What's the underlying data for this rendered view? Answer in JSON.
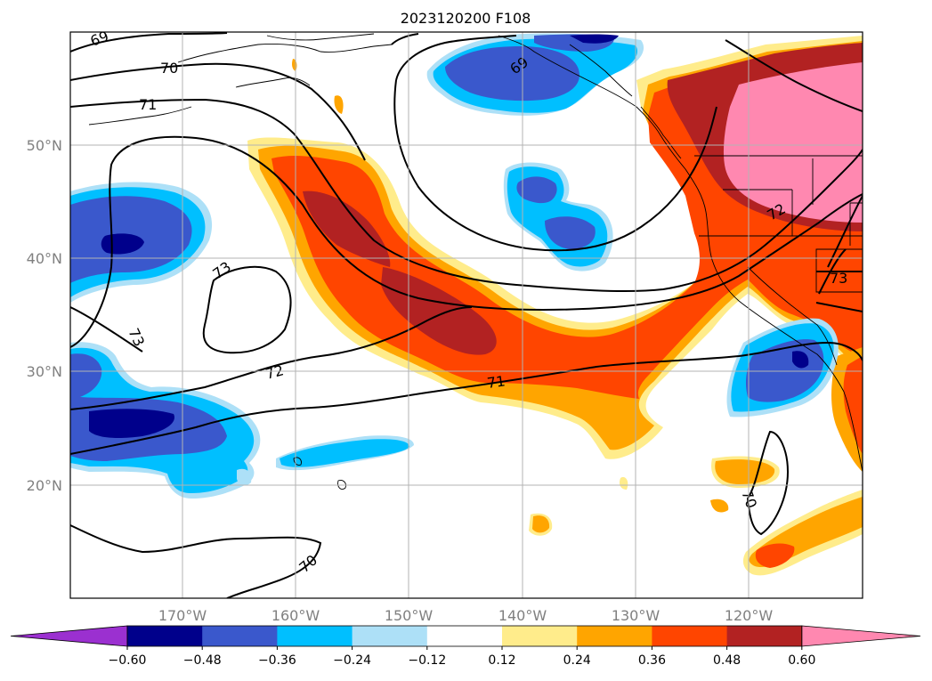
{
  "title": "2023120200 F108",
  "lat_labels": [
    "50°N",
    "40°N",
    "30°N",
    "20°N"
  ],
  "lon_labels": [
    "170°W",
    "160°W",
    "150°W",
    "140°W",
    "130°W",
    "120°W"
  ],
  "contour_labels": [
    "69",
    "69",
    "70",
    "70",
    "70",
    "71",
    "71",
    "72",
    "72",
    "73",
    "73",
    "73"
  ],
  "colorbar": {
    "ticks": [
      "−0.60",
      "−0.48",
      "−0.36",
      "−0.24",
      "−0.12",
      "0.12",
      "0.24",
      "0.36",
      "0.48",
      "0.60"
    ],
    "colors": [
      "#9b30d0",
      "#00008b",
      "#3a58cc",
      "#00bfff",
      "#ade0f7",
      "#ffffff",
      "#ffec8b",
      "#ffa500",
      "#ff4500",
      "#b22222",
      "#ff88b0"
    ]
  },
  "fill_colors": {
    "neg_light": "#ade0f7",
    "neg_mid": "#00bfff",
    "neg_strong": "#3a58cc",
    "neg_max": "#00008b",
    "pos_light": "#ffec8b",
    "pos_mid": "#ffa500",
    "pos_strong": "#ff4500",
    "pos_high": "#b22222",
    "pos_max": "#ff88b0"
  },
  "grid_color": "#b3b3b3",
  "axis_label_color": "#808080"
}
